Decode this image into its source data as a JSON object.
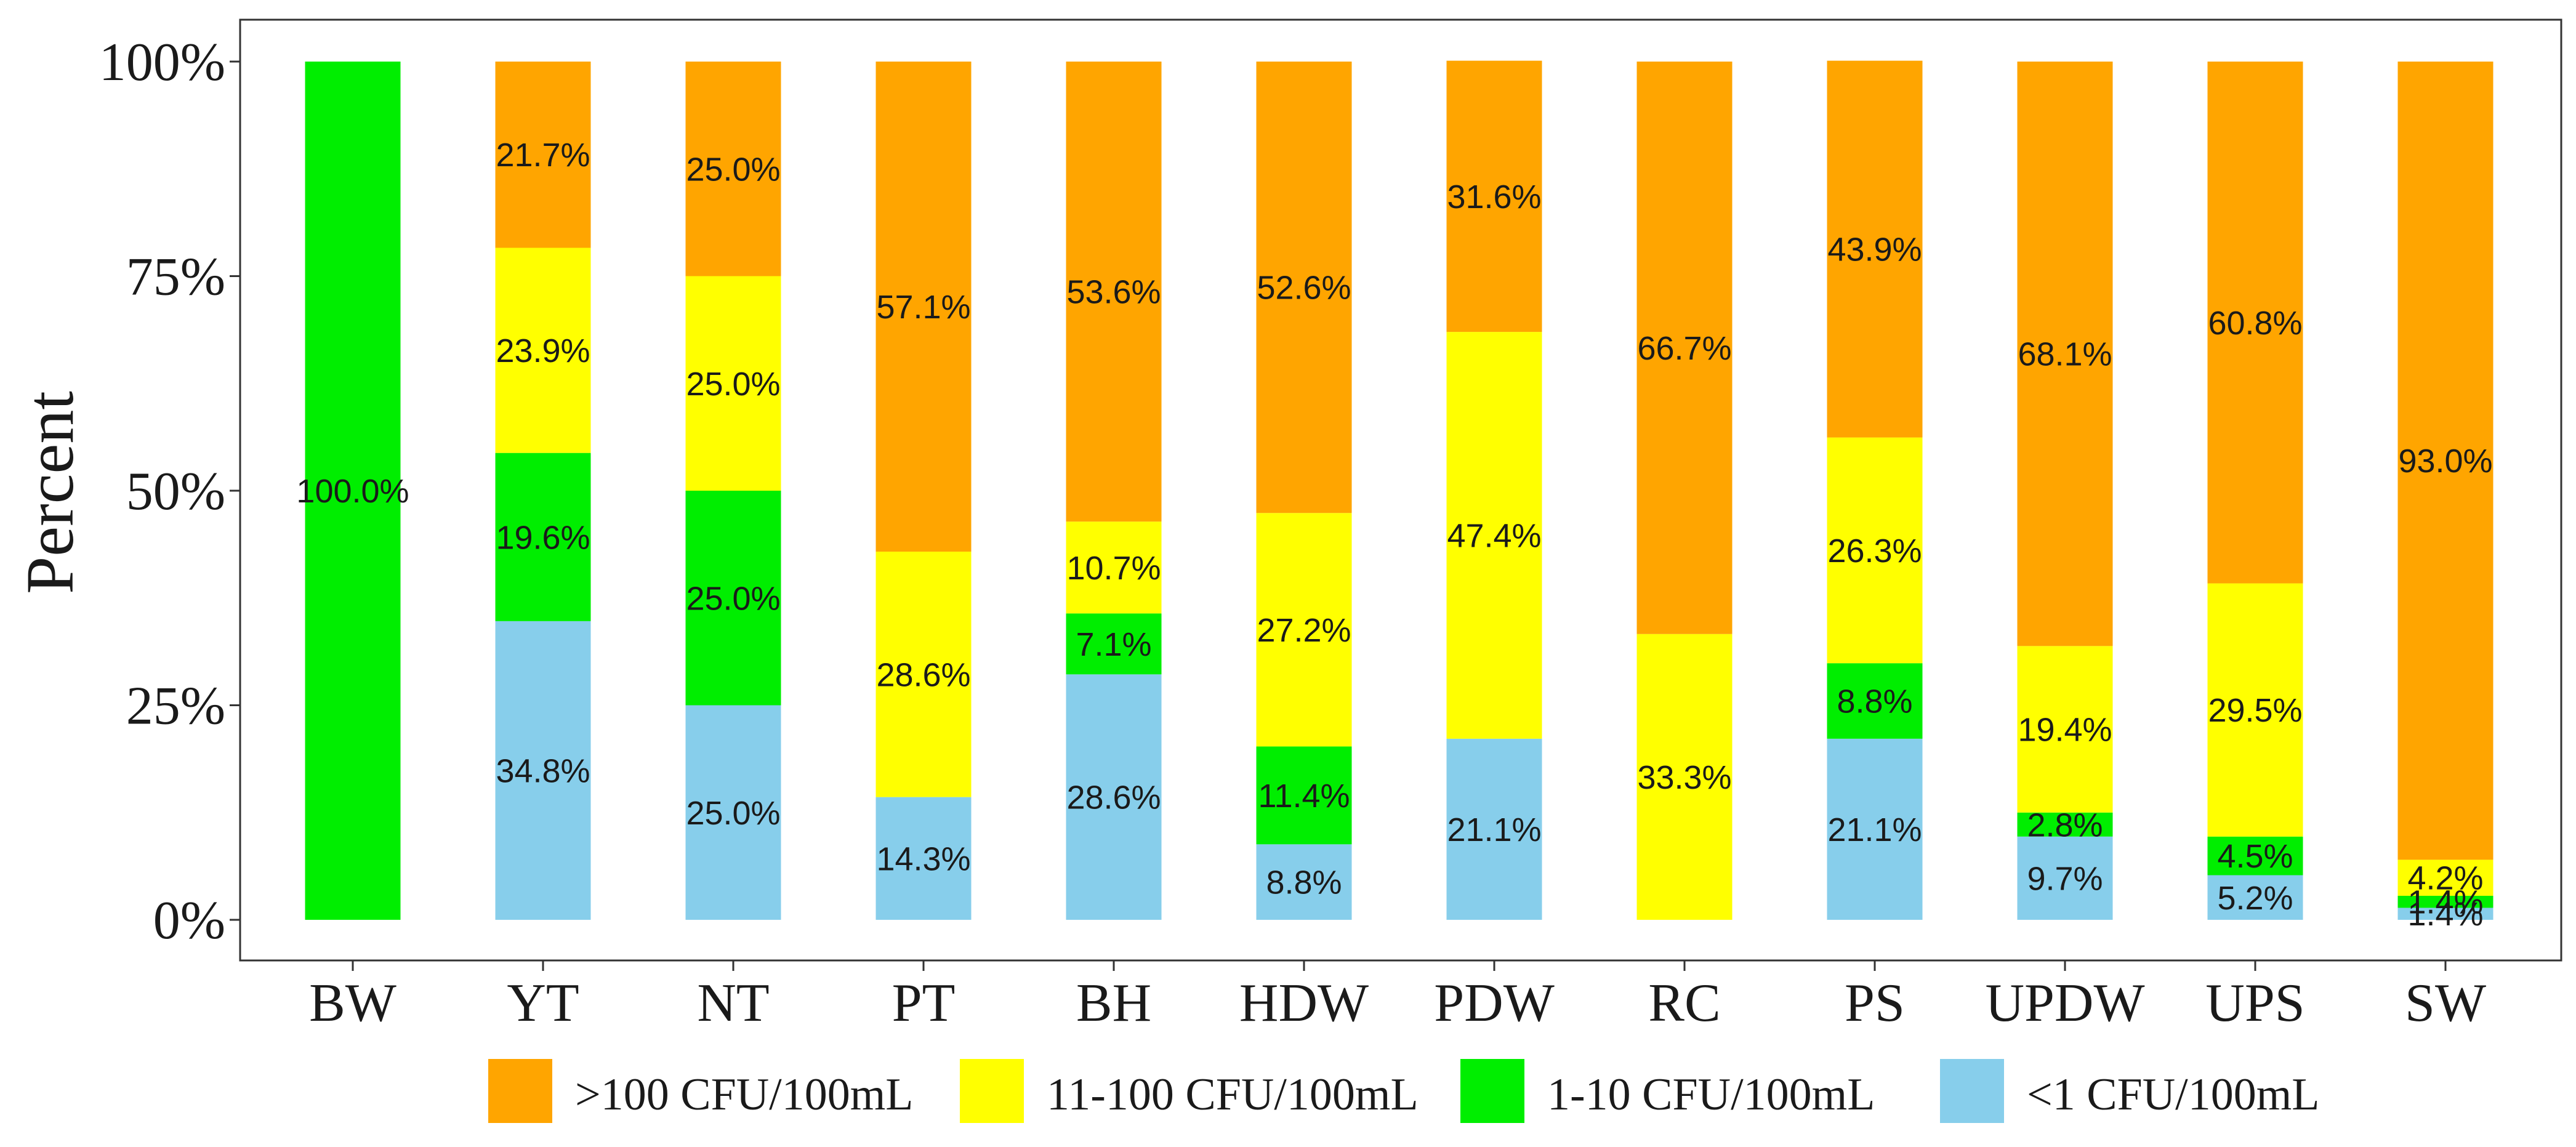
{
  "chart_data": {
    "type": "bar",
    "stacked": true,
    "normalized": true,
    "title": "",
    "xlabel": "",
    "ylabel": "Percent",
    "ylim": [
      0,
      100
    ],
    "yticks": [
      "0%",
      "25%",
      "50%",
      "75%",
      "100%"
    ],
    "ytick_values": [
      0,
      25,
      50,
      75,
      100
    ],
    "grid": false,
    "legend_position": "bottom",
    "categories": [
      "BW",
      "YT",
      "NT",
      "PT",
      "BH",
      "HDW",
      "PDW",
      "RC",
      "PS",
      "UPDW",
      "UPS",
      "SW"
    ],
    "series": [
      {
        "name": "<1 CFU/100mL",
        "color": "#87CEEB",
        "values": [
          0,
          34.8,
          25.0,
          14.3,
          28.6,
          8.8,
          21.1,
          0,
          21.1,
          9.7,
          5.2,
          1.4
        ],
        "labels": [
          "",
          "34.8%",
          "25.0%",
          "14.3%",
          "28.6%",
          "8.8%",
          "21.1%",
          "",
          "21.1%",
          "9.7%",
          "5.2%",
          "1.4%"
        ]
      },
      {
        "name": "1-10 CFU/100mL",
        "color": "#00EE00",
        "values": [
          100.0,
          19.6,
          25.0,
          0,
          7.1,
          11.4,
          0,
          0,
          8.8,
          2.8,
          4.5,
          1.4
        ],
        "labels": [
          "100.0%",
          "19.6%",
          "25.0%",
          "",
          "7.1%",
          "11.4%",
          "",
          "",
          "8.8%",
          "2.8%",
          "4.5%",
          "1.4%"
        ]
      },
      {
        "name": "11-100 CFU/100mL",
        "color": "#FFFF00",
        "values": [
          0,
          23.9,
          25.0,
          28.6,
          10.7,
          27.2,
          47.4,
          33.3,
          26.3,
          19.4,
          29.5,
          4.2
        ],
        "labels": [
          "",
          "23.9%",
          "25.0%",
          "28.6%",
          "10.7%",
          "27.2%",
          "47.4%",
          "33.3%",
          "26.3%",
          "19.4%",
          "29.5%",
          "4.2%"
        ]
      },
      {
        "name": ">100 CFU/100mL",
        "color": "#FFA500",
        "values": [
          0,
          21.7,
          25.0,
          57.1,
          53.6,
          52.6,
          31.6,
          66.7,
          43.9,
          68.1,
          60.8,
          93.0
        ],
        "labels": [
          "",
          "21.7%",
          "25.0%",
          "57.1%",
          "53.6%",
          "52.6%",
          "31.6%",
          "66.7%",
          "43.9%",
          "68.1%",
          "60.8%",
          "93.0%"
        ]
      }
    ],
    "legend_order": [
      ">100 CFU/100mL",
      "11-100 CFU/100mL",
      "1-10 CFU/100mL",
      "<1 CFU/100mL"
    ]
  }
}
